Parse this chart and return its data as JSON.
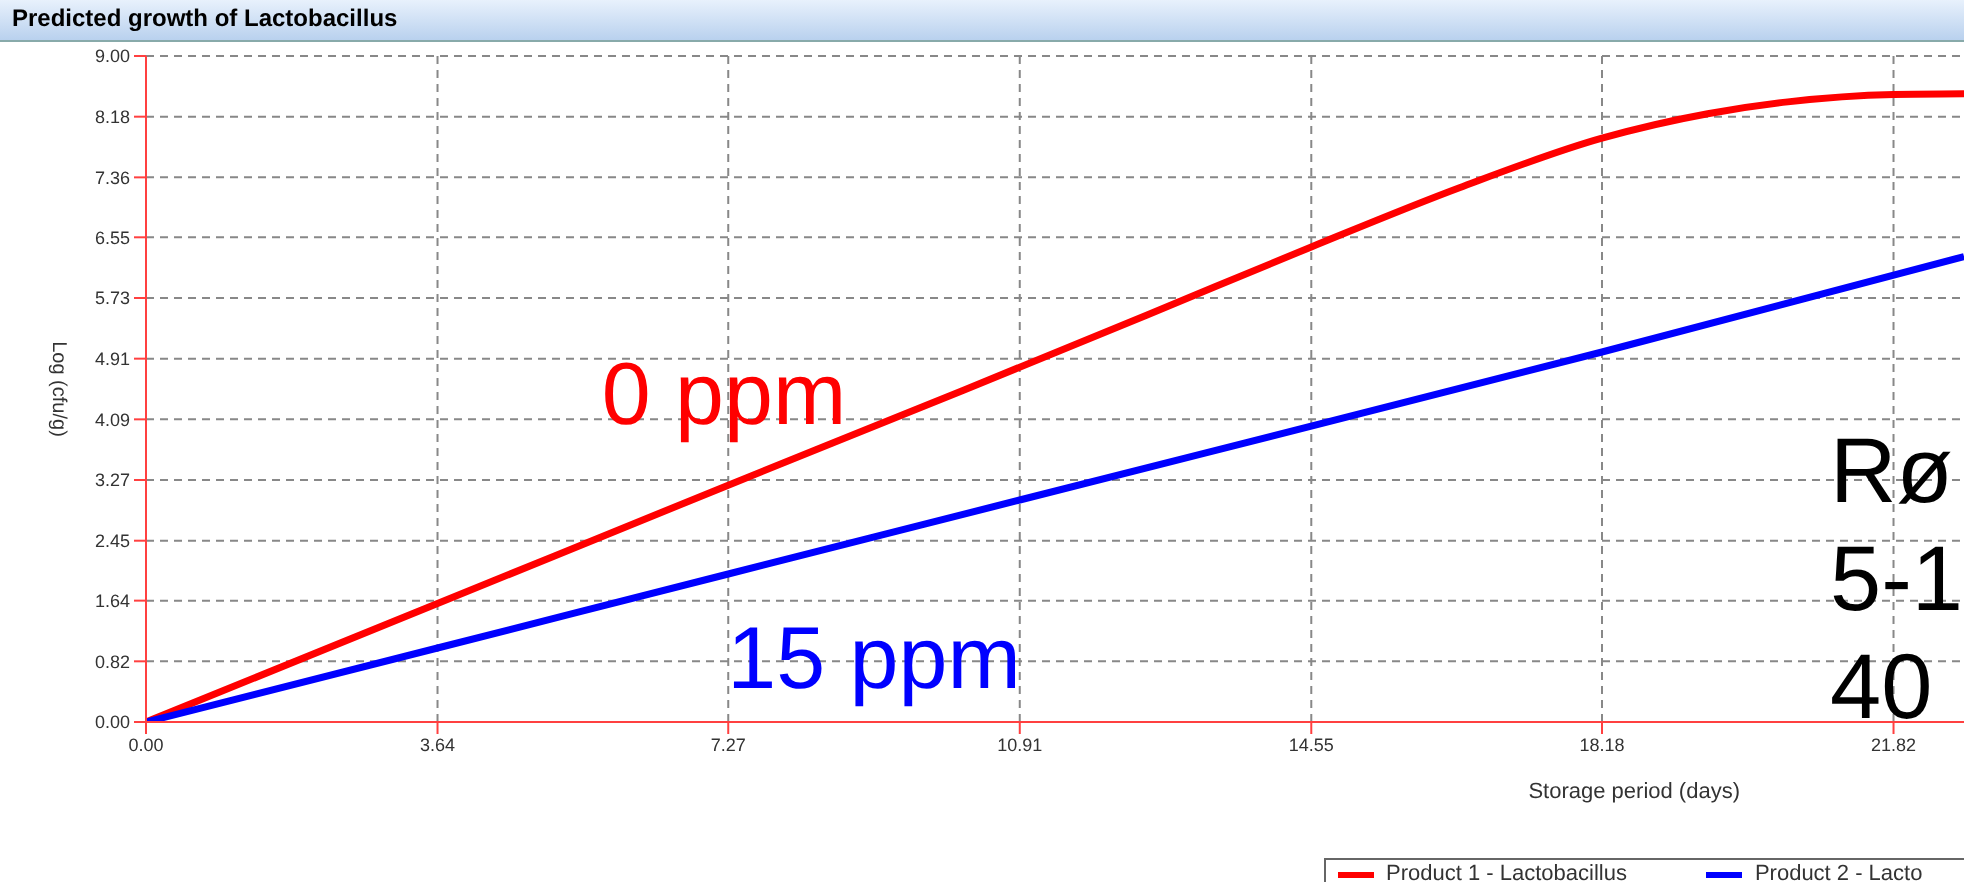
{
  "chart_data": {
    "type": "line",
    "title": "Predicted growth of Lactobacillus",
    "xlabel": "Storage period (days)",
    "ylabel": "Log (cfu/g)",
    "xlim": [
      0,
      22.7
    ],
    "xticks": [
      {
        "value": 0,
        "label": "0.00"
      },
      3.64,
      7.27,
      10.91,
      14.55,
      18.18,
      21.82
    ],
    "ylim": [
      0,
      9
    ],
    "yticks": [
      {
        "value": 0,
        "label": "0.00"
      },
      0.82,
      1.64,
      2.45,
      3.27,
      4.09,
      4.91,
      5.73,
      6.55,
      7.36,
      8.18,
      {
        "value": 9,
        "label": "9.00"
      }
    ],
    "grid": true,
    "legend": "bottom right",
    "marker": "none",
    "line_style": "solid",
    "series": [
      {
        "name": "Product 1 - Lactobacillus",
        "color": "#ff0000",
        "x": [
          0,
          3.64,
          7.27,
          10.2,
          12.5,
          14.55,
          16.4,
          18.18,
          19.5,
          20.5,
          21.82,
          22.7
        ],
        "values": [
          0,
          1.6,
          3.2,
          4.48,
          5.5,
          6.42,
          7.22,
          7.89,
          8.22,
          8.38,
          8.48,
          8.49
        ]
      },
      {
        "name": "Product 2 - Lacto",
        "color": "#0000ff",
        "x": [
          0,
          3.64,
          7.27,
          10.91,
          18.18,
          22.7
        ],
        "values": [
          0,
          1.0,
          2.0,
          3.0,
          5.0,
          6.29
        ]
      }
    ],
    "annotations": [
      "0 ppm",
      "15 ppm",
      "Rø",
      "5-1",
      "40"
    ]
  }
}
